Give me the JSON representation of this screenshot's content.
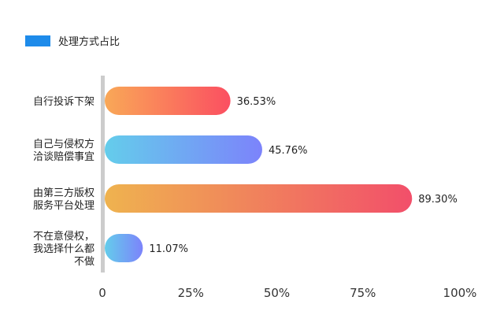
{
  "chart_data": {
    "type": "bar",
    "orientation": "horizontal",
    "legend": {
      "label": "处理方式占比",
      "color": "#1E8BEA",
      "placement": "top-left"
    },
    "categories": [
      [
        "自行投诉下架"
      ],
      [
        "自己与侵权方",
        "洽谈赔偿事宜"
      ],
      [
        "由第三方版权",
        "服务平台处理"
      ],
      [
        "不在意侵权，",
        "我选择什么都",
        "不做"
      ]
    ],
    "series": [
      {
        "name": "处理方式占比",
        "values": [
          36.53,
          45.76,
          89.3,
          11.07
        ]
      }
    ],
    "value_labels": [
      "36.53%",
      "45.76%",
      "89.30%",
      "11.07%"
    ],
    "xlim": [
      0,
      100
    ],
    "x_ticks": [
      0,
      25,
      50,
      75,
      100
    ],
    "x_tick_labels": [
      "0",
      "25%",
      "50%",
      "75%",
      "100%"
    ],
    "bar_gradients": [
      [
        "#F9A857",
        "#FB4F61"
      ],
      [
        "#64CDEB",
        "#7C83FB"
      ],
      [
        "#EFB34F",
        "#F24F6A"
      ],
      [
        "#64CDEB",
        "#7C83FB"
      ]
    ],
    "axis_color": "#CCCCCC",
    "grid": false
  }
}
